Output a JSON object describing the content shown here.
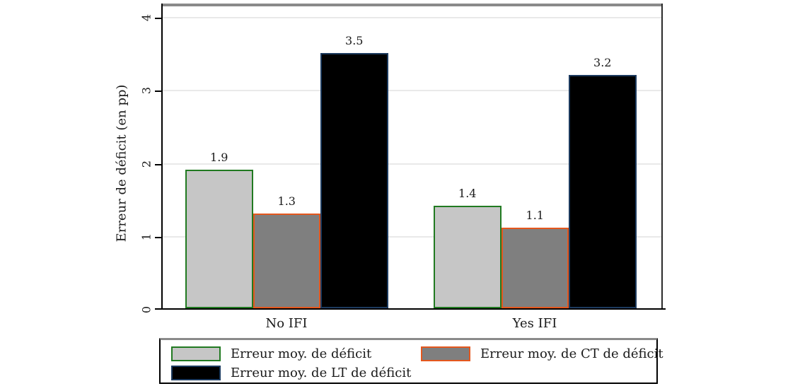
{
  "figure": {
    "background": "#ffffff",
    "text_color": "#1a1a1a",
    "axis_color": "#000000",
    "frame_top_color": "#8a8a8a",
    "gridline_color": "#e9e9e9"
  },
  "chart_data": {
    "type": "bar",
    "title": "",
    "categories": [
      "No IFI",
      "Yes IFI"
    ],
    "series": [
      {
        "name": "Erreur moy. de déficit",
        "values": [
          1.9,
          1.4
        ],
        "fill": "#c6c6c6",
        "border": "#217a21"
      },
      {
        "name": "Erreur moy. de CT de déficit",
        "values": [
          1.3,
          1.1
        ],
        "fill": "#7f7f7f",
        "border": "#e4571d"
      },
      {
        "name": "Erreur moy. de LT de déficit",
        "values": [
          3.5,
          3.2
        ],
        "fill": "#000000",
        "border": "#1c3a5e"
      }
    ],
    "bar_value_labels": [
      [
        "1.9",
        "1.4"
      ],
      [
        "1.3",
        "1.1"
      ],
      [
        "3.5",
        "3.2"
      ]
    ],
    "xlabel": "",
    "ylabel": "Erreur de déficit (en pp)",
    "ylim": [
      0,
      4
    ],
    "yticks": [
      0,
      1,
      2,
      3,
      4
    ],
    "ytick_labels": [
      "0",
      "1",
      "2",
      "3",
      "4"
    ],
    "ytick_label_rotation_deg": 90,
    "grid": true,
    "legend_position": "bottom",
    "legend_columns": 2
  }
}
